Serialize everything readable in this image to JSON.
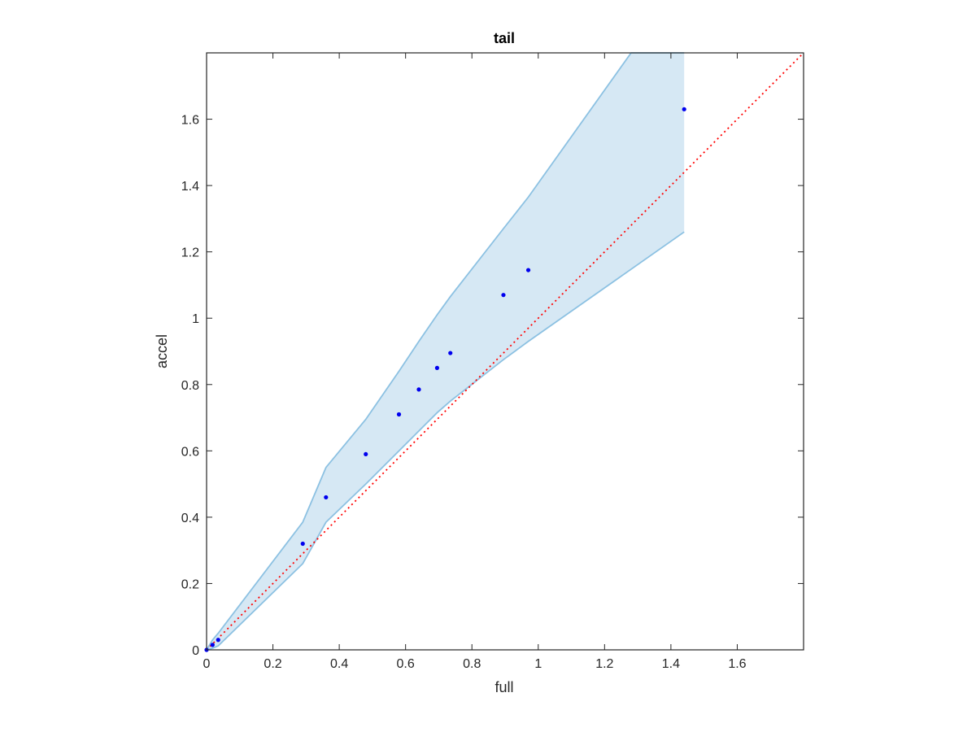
{
  "chart_data": {
    "type": "scatter",
    "title": "tail",
    "xlabel": "full",
    "ylabel": "accel",
    "xlim": [
      0,
      1.8
    ],
    "ylim": [
      0,
      1.8
    ],
    "grid": false,
    "x_ticks": [
      "0",
      "0.2",
      "0.4",
      "0.6",
      "0.8",
      "1",
      "1.2",
      "1.4",
      "1.6"
    ],
    "y_ticks": [
      "0",
      "0.2",
      "0.4",
      "0.6",
      "0.8",
      "1",
      "1.2",
      "1.4",
      "1.6"
    ],
    "points": {
      "x": [
        0.0,
        0.018,
        0.035,
        0.29,
        0.36,
        0.48,
        0.58,
        0.64,
        0.695,
        0.735,
        0.895,
        0.97,
        1.44
      ],
      "y": [
        0.0,
        0.015,
        0.03,
        0.32,
        0.46,
        0.59,
        0.71,
        0.785,
        0.85,
        0.895,
        1.07,
        1.145,
        1.63
      ]
    },
    "band_upper": {
      "x": [
        0.0,
        0.018,
        0.035,
        0.29,
        0.36,
        0.48,
        0.58,
        0.64,
        0.695,
        0.735,
        0.895,
        0.97,
        1.28,
        1.44
      ],
      "y": [
        0.0,
        0.03,
        0.05,
        0.385,
        0.55,
        0.695,
        0.84,
        0.93,
        1.01,
        1.065,
        1.27,
        1.365,
        1.8,
        1.8
      ]
    },
    "band_lower": {
      "x": [
        0.0,
        0.018,
        0.035,
        0.29,
        0.36,
        0.48,
        0.58,
        0.64,
        0.695,
        0.735,
        0.895,
        0.97,
        1.44
      ],
      "y": [
        0.0,
        0.005,
        0.012,
        0.26,
        0.385,
        0.5,
        0.6,
        0.66,
        0.715,
        0.75,
        0.875,
        0.93,
        1.26
      ]
    },
    "reference_line": {
      "x": [
        0,
        1.8
      ],
      "y": [
        0,
        1.8
      ]
    },
    "colors": {
      "points": "#0000ee",
      "band_fill": "#d6e8f4",
      "band_edge": "#8cc1e2",
      "reference": "#ff0000",
      "axis": "#262626"
    }
  }
}
